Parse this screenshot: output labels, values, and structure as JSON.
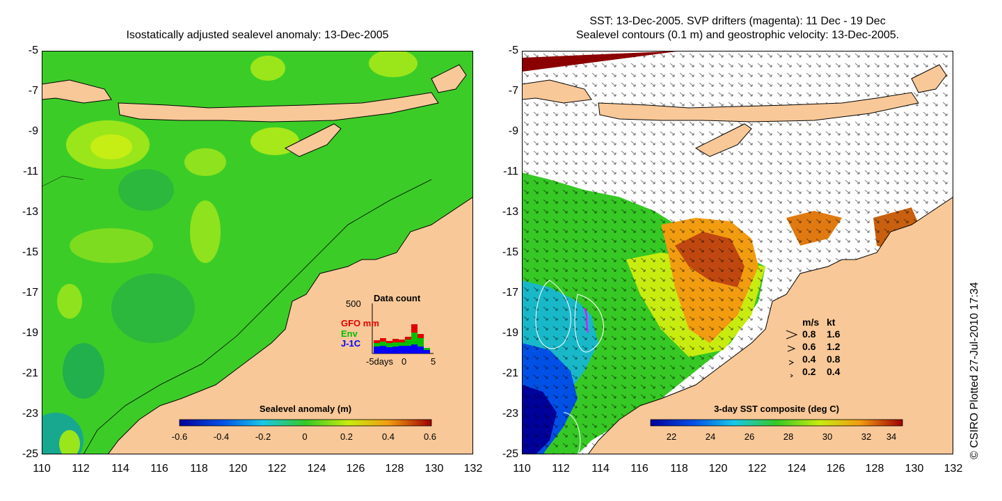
{
  "left_panel": {
    "title": "Isostatically adjusted sealevel anomaly: 13-Dec-2005",
    "colorbar": {
      "title": "Sealevel anomaly (m)",
      "ticks": [
        "-0.6",
        "-0.4",
        "-0.2",
        "0",
        "0.2",
        "0.4",
        "0.6"
      ],
      "range": [
        -0.6,
        0.6
      ]
    },
    "data_count": {
      "title": "Data count",
      "ymax_label": "500",
      "series": [
        {
          "name": "GFO mm",
          "color": "#e00000"
        },
        {
          "name": "Env",
          "color": "#00c000"
        },
        {
          "name": "J-1C",
          "color": "#0000ff"
        }
      ],
      "x_labels": [
        "-5days",
        "0",
        "5"
      ]
    }
  },
  "right_panel": {
    "title_line1": "SST: 13-Dec-2005. SVP drifters (magenta): 11 Dec - 19 Dec",
    "title_line2": "Sealevel contours (0.1 m) and geostrophic velocity: 13-Dec-2005.",
    "colorbar": {
      "title": "3-day SST composite (deg C)",
      "ticks": [
        "22",
        "24",
        "26",
        "28",
        "30",
        "32",
        "34"
      ],
      "range": [
        21,
        34
      ]
    },
    "velocity_legend": {
      "header_ms": "m/s",
      "header_kt": "kt",
      "rows": [
        {
          "ms": "0.8",
          "kt": "1.6"
        },
        {
          "ms": "0.6",
          "kt": "1.2"
        },
        {
          "ms": "0.4",
          "kt": "0.8"
        },
        {
          "ms": "0.2",
          "kt": "0.4"
        }
      ]
    }
  },
  "axes": {
    "y_ticks": [
      "-5",
      "-7",
      "-9",
      "-11",
      "-13",
      "-15",
      "-17",
      "-19",
      "-21",
      "-23",
      "-25"
    ],
    "x_ticks": [
      "110",
      "112",
      "114",
      "116",
      "118",
      "120",
      "122",
      "124",
      "126",
      "128",
      "130",
      "132"
    ]
  },
  "credit": "© CSIRO Plotted 27-Jul-2010 17:34",
  "colors": {
    "land": "#f8c898",
    "ocean_green": "#36c824",
    "sst_white": "#ffffff"
  }
}
